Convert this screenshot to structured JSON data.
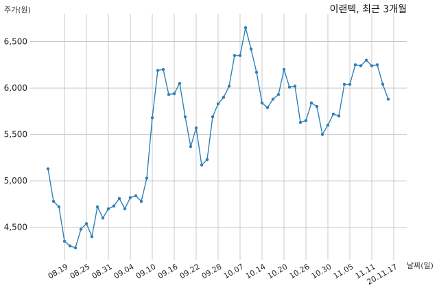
{
  "chart_data": {
    "type": "line",
    "title": "이랜텍, 최근 3개월",
    "ylabel": "주가(원)",
    "xlabel": "날짜(일)",
    "ylim": [
      4150,
      6800
    ],
    "yticks": [
      4500,
      5000,
      5500,
      6000,
      6500
    ],
    "ytick_labels": [
      "4,500",
      "5,000",
      "5,500",
      "6,000",
      "6,500"
    ],
    "xtick_labels": [
      "08.19",
      "08.25",
      "08.31",
      "09.04",
      "09.10",
      "09.16",
      "09.22",
      "09.28",
      "10.07",
      "10.14",
      "10.20",
      "10.26",
      "10.30",
      "11.05",
      "11.11",
      "20.11.17"
    ],
    "xtick_index": [
      3,
      7,
      11,
      15,
      19,
      23,
      27,
      31,
      35,
      39,
      43,
      47,
      51,
      55,
      59,
      63
    ],
    "grid": true,
    "line_color": "#2e7fb8",
    "series": [
      {
        "values": [
          5130,
          4780,
          4720,
          4350,
          4300,
          4280,
          4480,
          4540,
          4400,
          4720,
          4600,
          4700,
          4730,
          4810,
          4700,
          4820,
          4840,
          4780,
          5030,
          5680,
          6190,
          6200,
          5930,
          5940,
          6050,
          5690,
          5370,
          5570,
          5170,
          5230,
          5690,
          5830,
          5900,
          6020,
          6350,
          6350,
          6650,
          6420,
          6170,
          5840,
          5790,
          5880,
          5930,
          6200,
          6010,
          6020,
          5630,
          5650,
          5840,
          5800,
          5500,
          5600,
          5720,
          5700,
          6040,
          6040,
          6250,
          6240,
          6300,
          6240,
          6250,
          6040,
          5880
        ]
      }
    ]
  }
}
